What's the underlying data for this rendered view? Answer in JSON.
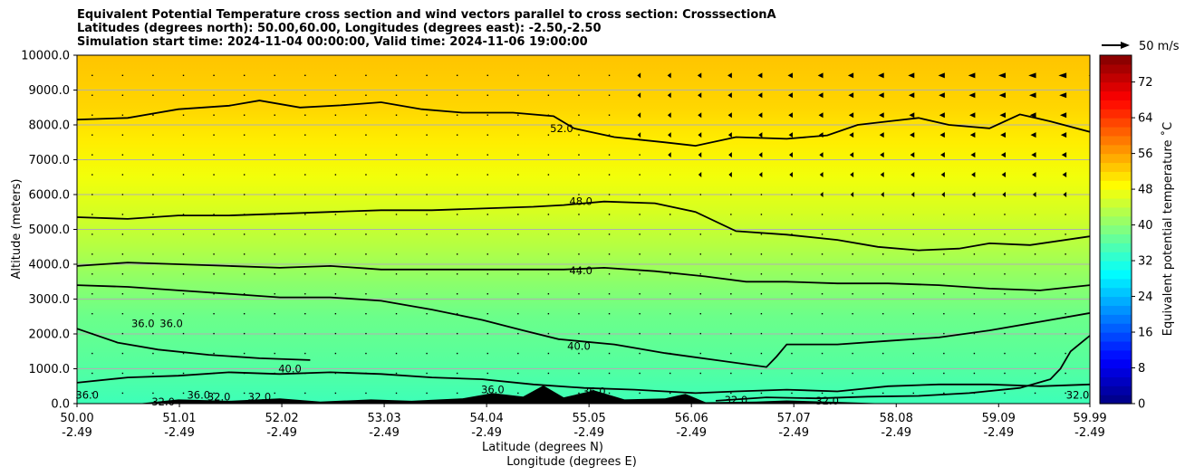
{
  "chart_data": {
    "type": "contourf",
    "title_lines": [
      "Equivalent Potential Temperature cross section and wind vectors parallel to cross section: CrosssectionA",
      "Latitudes (degrees north): 50.00,60.00, Longitudes (degrees east): -2.50,-2.50",
      "Simulation start time: 2024-11-04 00:00:00, Valid time: 2024-11-06 19:00:00"
    ],
    "xlabel_lat": "Latitude (degrees N)",
    "xlabel_lon": "Longitude (degrees E)",
    "ylabel": "Altitude (meters)",
    "xlim": [
      50.0,
      59.99
    ],
    "ylim": [
      0,
      10000
    ],
    "x_ticks": [
      {
        "lat": "50.00",
        "lon": "-2.49",
        "v": 50.0
      },
      {
        "lat": "51.01",
        "lon": "-2.49",
        "v": 51.01
      },
      {
        "lat": "52.02",
        "lon": "-2.49",
        "v": 52.02
      },
      {
        "lat": "53.03",
        "lon": "-2.49",
        "v": 53.03
      },
      {
        "lat": "54.04",
        "lon": "-2.49",
        "v": 54.04
      },
      {
        "lat": "55.05",
        "lon": "-2.49",
        "v": 55.05
      },
      {
        "lat": "56.06",
        "lon": "-2.49",
        "v": 56.06
      },
      {
        "lat": "57.07",
        "lon": "-2.49",
        "v": 57.07
      },
      {
        "lat": "58.08",
        "lon": "-2.49",
        "v": 58.08
      },
      {
        "lat": "59.09",
        "lon": "-2.49",
        "v": 59.09
      },
      {
        "lat": "59.99",
        "lon": "-2.49",
        "v": 59.99
      }
    ],
    "y_ticks": [
      "0.0",
      "1000.0",
      "2000.0",
      "3000.0",
      "4000.0",
      "5000.0",
      "6000.0",
      "7000.0",
      "8000.0",
      "9000.0",
      "10000.0"
    ],
    "colorbar": {
      "label": "Equivalent potential temperature ˚C",
      "min": 0,
      "max": 78,
      "step": 2,
      "ticks": [
        "0",
        "8",
        "16",
        "24",
        "32",
        "40",
        "48",
        "56",
        "64",
        "72"
      ]
    },
    "quiver_key": {
      "label": "50 m/s"
    },
    "contours": [
      {
        "level": 52.0,
        "label": "52.0",
        "label_at": [
          54.78,
          7900
        ],
        "points": [
          [
            50.0,
            8150
          ],
          [
            50.5,
            8200
          ],
          [
            51.0,
            8450
          ],
          [
            51.5,
            8550
          ],
          [
            51.8,
            8700
          ],
          [
            52.2,
            8500
          ],
          [
            52.6,
            8560
          ],
          [
            53.0,
            8650
          ],
          [
            53.4,
            8450
          ],
          [
            53.8,
            8350
          ],
          [
            54.3,
            8350
          ],
          [
            54.7,
            8250
          ],
          [
            54.9,
            7900
          ],
          [
            55.3,
            7650
          ],
          [
            55.8,
            7500
          ],
          [
            56.1,
            7400
          ],
          [
            56.5,
            7650
          ],
          [
            57.0,
            7600
          ],
          [
            57.4,
            7700
          ],
          [
            57.7,
            8000
          ],
          [
            58.0,
            8100
          ],
          [
            58.3,
            8200
          ],
          [
            58.6,
            8000
          ],
          [
            59.0,
            7900
          ],
          [
            59.3,
            8300
          ],
          [
            59.6,
            8100
          ],
          [
            59.99,
            7800
          ]
        ]
      },
      {
        "level": 48.0,
        "label": "48.0",
        "label_at": [
          54.97,
          5800
        ],
        "points": [
          [
            50.0,
            5350
          ],
          [
            50.5,
            5300
          ],
          [
            51.0,
            5400
          ],
          [
            51.5,
            5400
          ],
          [
            52.0,
            5450
          ],
          [
            52.5,
            5500
          ],
          [
            53.0,
            5550
          ],
          [
            53.5,
            5550
          ],
          [
            54.0,
            5600
          ],
          [
            54.5,
            5650
          ],
          [
            54.8,
            5700
          ],
          [
            55.2,
            5800
          ],
          [
            55.7,
            5750
          ],
          [
            56.1,
            5500
          ],
          [
            56.5,
            4950
          ],
          [
            57.0,
            4850
          ],
          [
            57.5,
            4700
          ],
          [
            57.9,
            4500
          ],
          [
            58.3,
            4400
          ],
          [
            58.7,
            4450
          ],
          [
            59.0,
            4600
          ],
          [
            59.4,
            4550
          ],
          [
            59.99,
            4800
          ]
        ]
      },
      {
        "level": 44.0,
        "label": "44.0",
        "label_at": [
          54.97,
          3820
        ],
        "points": [
          [
            50.0,
            3950
          ],
          [
            50.5,
            4050
          ],
          [
            51.0,
            4000
          ],
          [
            51.5,
            3950
          ],
          [
            52.0,
            3900
          ],
          [
            52.5,
            3950
          ],
          [
            53.0,
            3850
          ],
          [
            53.5,
            3850
          ],
          [
            54.0,
            3850
          ],
          [
            54.5,
            3850
          ],
          [
            54.8,
            3850
          ],
          [
            55.2,
            3900
          ],
          [
            55.7,
            3800
          ],
          [
            56.2,
            3650
          ],
          [
            56.6,
            3500
          ],
          [
            57.0,
            3500
          ],
          [
            57.5,
            3450
          ],
          [
            58.0,
            3450
          ],
          [
            58.5,
            3400
          ],
          [
            59.0,
            3300
          ],
          [
            59.5,
            3250
          ],
          [
            59.99,
            3400
          ]
        ]
      },
      {
        "level": 40.0,
        "label": "40.0",
        "label_at": [
          54.95,
          1650
        ],
        "points": [
          [
            50.0,
            3400
          ],
          [
            50.5,
            3350
          ],
          [
            51.0,
            3250
          ],
          [
            51.5,
            3150
          ],
          [
            52.0,
            3050
          ],
          [
            52.5,
            3050
          ],
          [
            53.0,
            2950
          ],
          [
            53.5,
            2700
          ],
          [
            54.0,
            2400
          ],
          [
            54.4,
            2100
          ],
          [
            54.75,
            1850
          ],
          [
            55.3,
            1700
          ],
          [
            55.8,
            1450
          ],
          [
            56.3,
            1250
          ],
          [
            56.8,
            1050
          ],
          [
            56.9,
            1350
          ],
          [
            57.0,
            1700
          ],
          [
            57.5,
            1700
          ],
          [
            58.0,
            1800
          ],
          [
            58.5,
            1900
          ],
          [
            59.0,
            2100
          ],
          [
            59.5,
            2350
          ],
          [
            59.99,
            2600
          ]
        ]
      },
      {
        "level": 40.0,
        "label": "40.0",
        "label_at": [
          52.1,
          1000
        ],
        "points": [
          [
            50.0,
            2150
          ],
          [
            50.4,
            1750
          ],
          [
            50.8,
            1550
          ],
          [
            51.3,
            1400
          ],
          [
            51.8,
            1300
          ],
          [
            52.3,
            1250
          ]
        ]
      },
      {
        "level": 36.0,
        "label": "36.0",
        "label_at": [
          55.1,
          350
        ],
        "points": [
          [
            50.0,
            600
          ],
          [
            50.5,
            750
          ],
          [
            51.0,
            800
          ],
          [
            51.5,
            900
          ],
          [
            52.0,
            850
          ],
          [
            52.5,
            900
          ],
          [
            53.0,
            850
          ],
          [
            53.5,
            750
          ],
          [
            54.0,
            700
          ],
          [
            54.5,
            550
          ],
          [
            55.0,
            450
          ],
          [
            55.5,
            400
          ],
          [
            56.1,
            300
          ],
          [
            56.5,
            350
          ],
          [
            57.0,
            400
          ],
          [
            57.5,
            350
          ],
          [
            58.0,
            500
          ],
          [
            58.5,
            550
          ],
          [
            59.0,
            550
          ],
          [
            59.5,
            500
          ],
          [
            59.99,
            550
          ]
        ]
      },
      {
        "level": 36.0,
        "label": "36.0",
        "label_at": [
          50.1,
          250
        ],
        "points": []
      },
      {
        "level": 32.0,
        "label": "32.0",
        "label_at": [
          56.5,
          100
        ],
        "points": [
          [
            56.3,
            80
          ],
          [
            56.8,
            180
          ],
          [
            57.3,
            150
          ],
          [
            57.8,
            200
          ],
          [
            58.3,
            220
          ],
          [
            58.8,
            300
          ],
          [
            59.3,
            450
          ],
          [
            59.6,
            700
          ],
          [
            59.7,
            1000
          ],
          [
            59.8,
            1500
          ],
          [
            59.99,
            1950
          ]
        ]
      }
    ],
    "extra_labels": [
      {
        "text": "36.0",
        "at": [
          50.65,
          2300
        ]
      },
      {
        "text": "36.0",
        "at": [
          50.93,
          2300
        ]
      },
      {
        "text": "32.0",
        "at": [
          50.85,
          50
        ]
      },
      {
        "text": "36.0",
        "at": [
          51.2,
          250
        ]
      },
      {
        "text": "32.0",
        "at": [
          51.4,
          200
        ]
      },
      {
        "text": "32.0",
        "at": [
          51.8,
          200
        ]
      },
      {
        "text": "32.0",
        "at": [
          57.4,
          80
        ]
      },
      {
        "text": "36.0",
        "at": [
          54.1,
          400
        ]
      },
      {
        "text": "32.0",
        "at": [
          59.87,
          250
        ]
      }
    ],
    "terrain": [
      [
        50.0,
        0
      ],
      [
        50.6,
        0
      ],
      [
        51.0,
        120
      ],
      [
        51.5,
        80
      ],
      [
        52.0,
        150
      ],
      [
        52.4,
        60
      ],
      [
        52.9,
        120
      ],
      [
        53.3,
        80
      ],
      [
        53.8,
        150
      ],
      [
        54.1,
        300
      ],
      [
        54.4,
        200
      ],
      [
        54.6,
        520
      ],
      [
        54.8,
        180
      ],
      [
        55.1,
        380
      ],
      [
        55.4,
        120
      ],
      [
        55.8,
        150
      ],
      [
        56.0,
        280
      ],
      [
        56.2,
        40
      ],
      [
        56.7,
        60
      ],
      [
        57.0,
        90
      ],
      [
        57.5,
        50
      ],
      [
        58.0,
        0
      ],
      [
        59.99,
        0
      ]
    ]
  }
}
